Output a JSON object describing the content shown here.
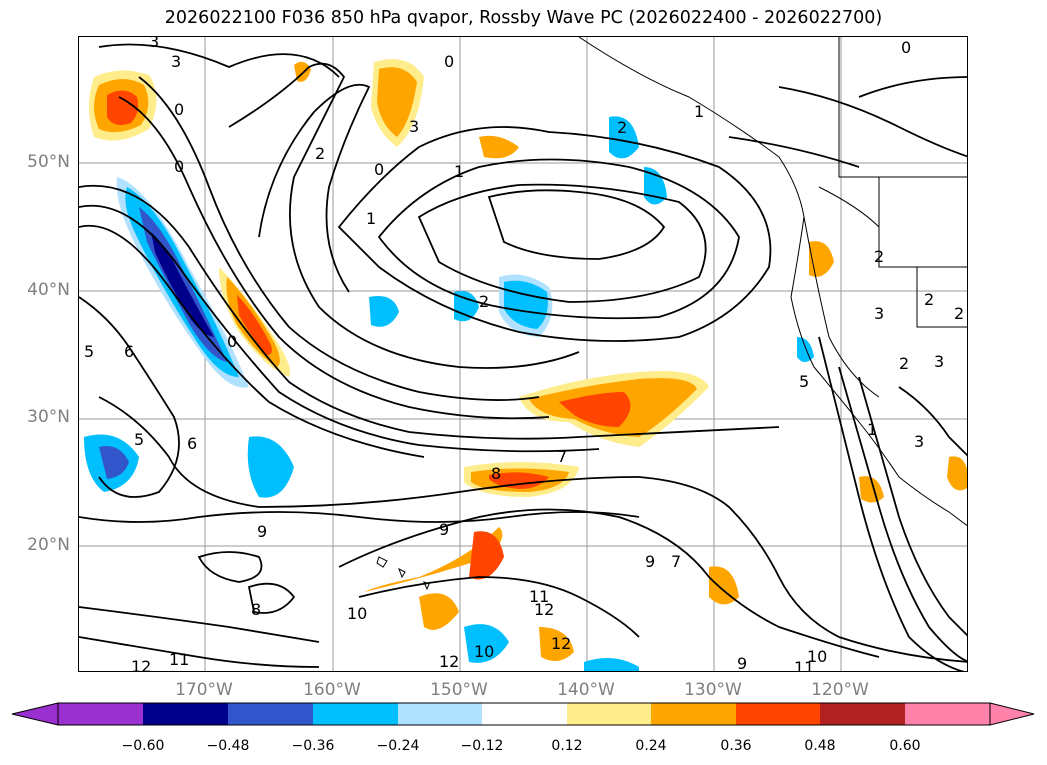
{
  "title": "2026022100 F036 850 hPa qvapor, Rossby Wave PC (2026022400 - 2026022700)",
  "map": {
    "lat_labels": [
      "50°N",
      "40°N",
      "30°N",
      "20°N"
    ],
    "lon_labels": [
      "170°W",
      "160°W",
      "150°W",
      "140°W",
      "130°W",
      "120°W"
    ],
    "contour_labels": [
      "3",
      "5",
      "0",
      "0",
      "2",
      "0",
      "3",
      "0",
      "1",
      "1",
      "2",
      "2",
      "1",
      "2",
      "2",
      "6",
      "0",
      "5",
      "5",
      "6",
      "5",
      "7",
      "8",
      "9",
      "9",
      "7",
      "8",
      "9",
      "10",
      "11",
      "12",
      "12",
      "10",
      "11",
      "12",
      "11",
      "12",
      "10",
      "12",
      "9",
      "3",
      "2",
      "3",
      "3",
      "2",
      "0",
      "1"
    ],
    "colors": {
      "neg_060": "#9b30d0",
      "neg_048": "#00008b",
      "neg_036": "#3355cc",
      "neg_024": "#00bfff",
      "neg_012": "#b0e2ff",
      "zero": "#ffffff",
      "pos_012": "#ffec8b",
      "pos_024": "#ffa500",
      "pos_036": "#ff4500",
      "pos_048": "#b22222",
      "pos_060": "#ff82ab"
    }
  },
  "colorbar": {
    "tick_labels": [
      "−0.60",
      "−0.48",
      "−0.36",
      "−0.24",
      "−0.12",
      "0.12",
      "0.24",
      "0.36",
      "0.48",
      "0.60"
    ]
  }
}
